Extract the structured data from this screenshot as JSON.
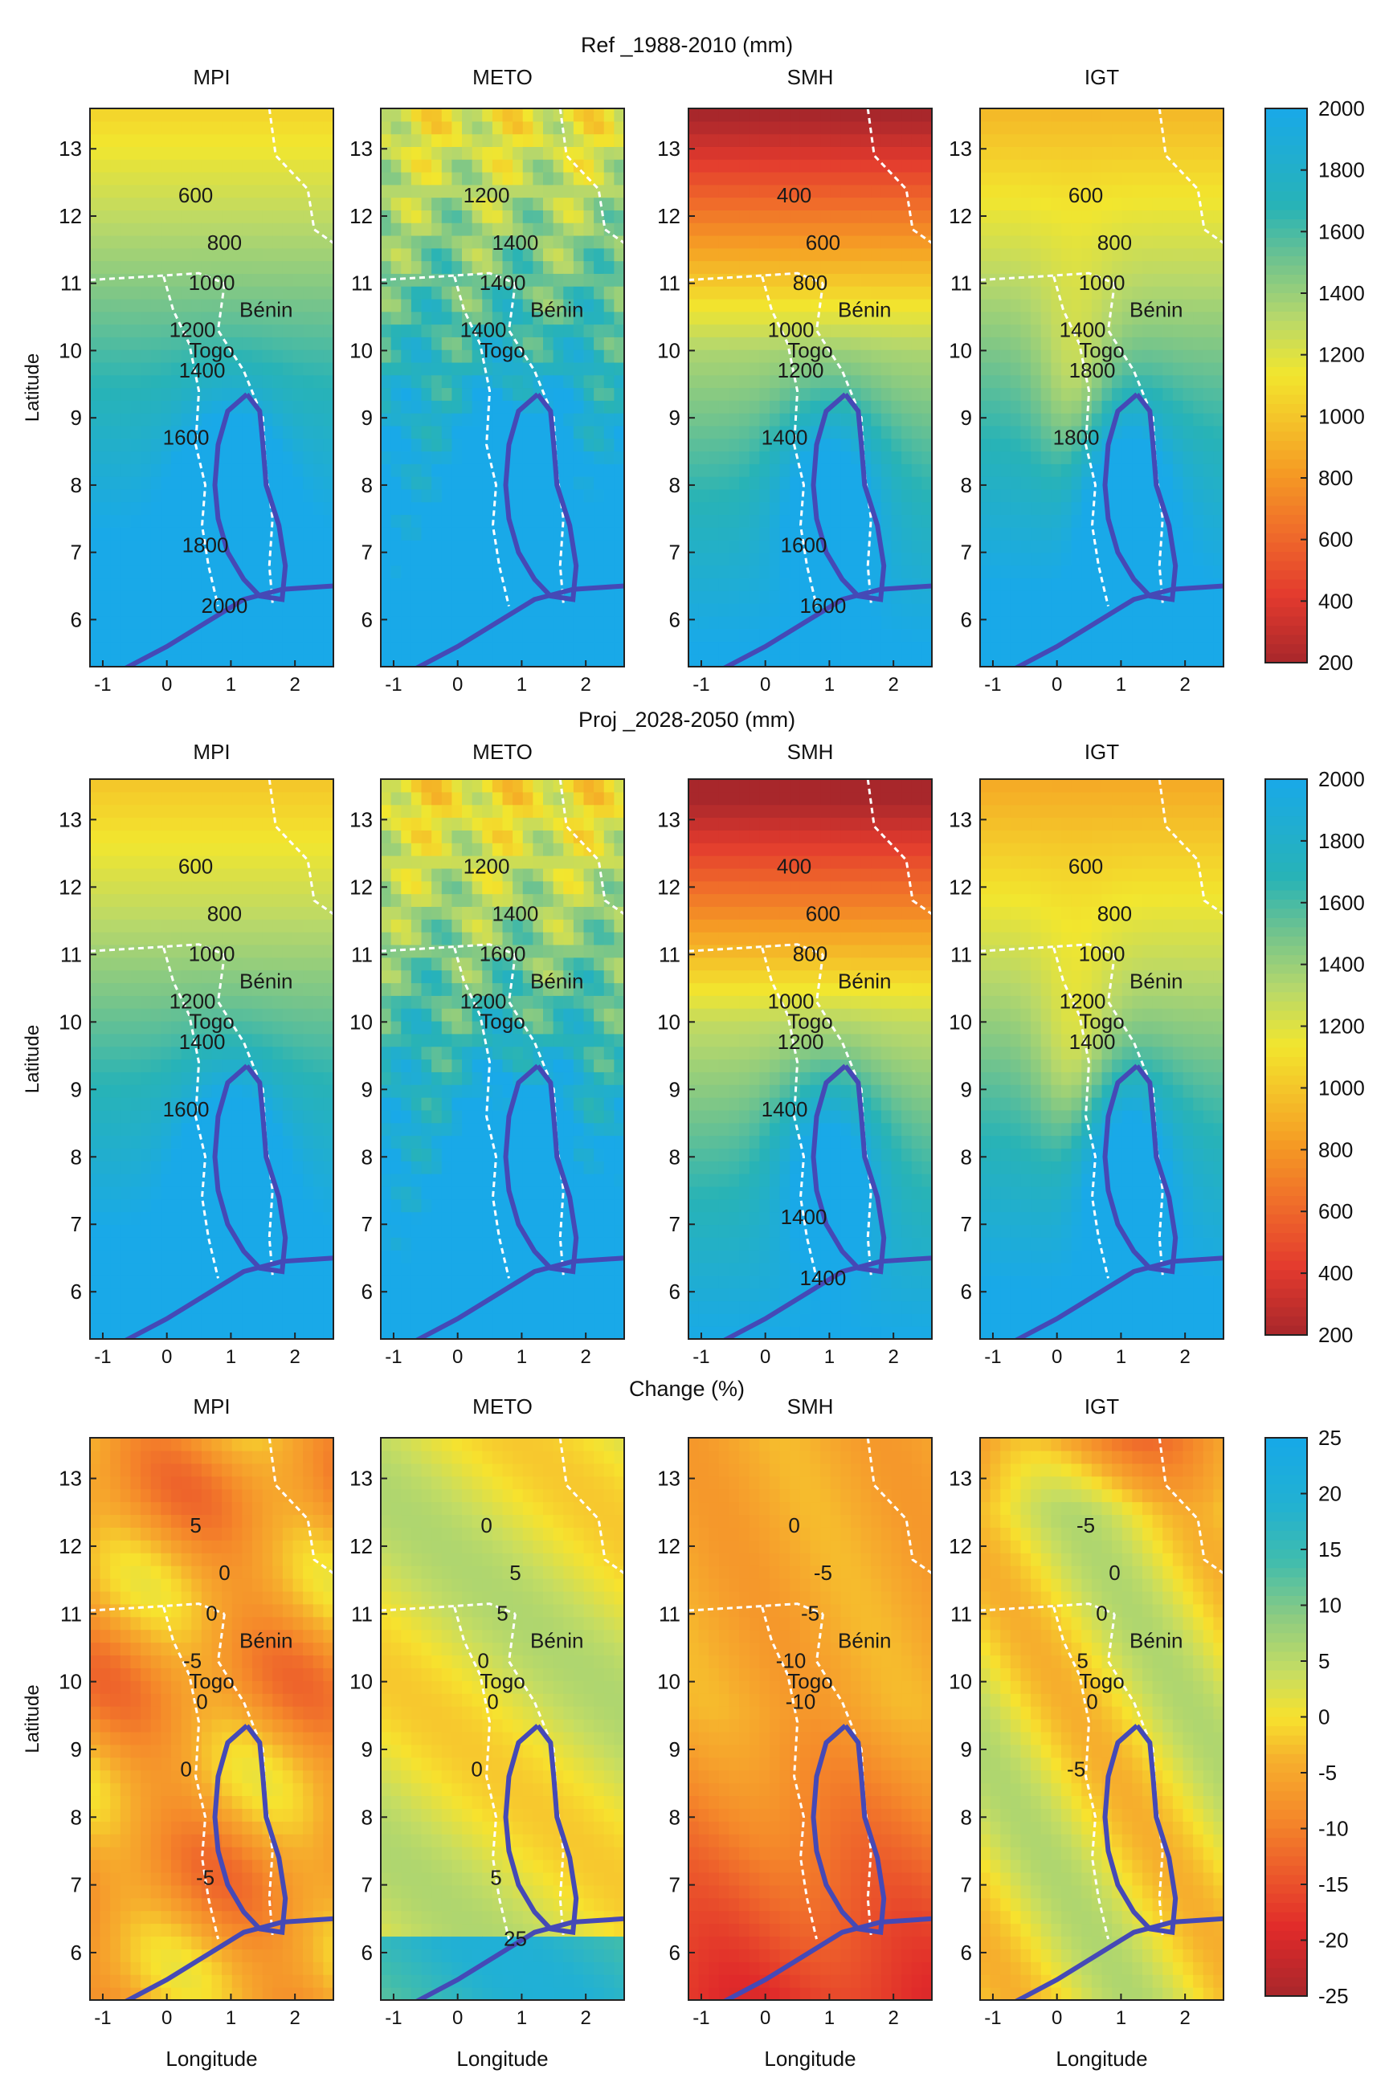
{
  "figure": {
    "row_titles": [
      "Ref _1988-2010 (mm)",
      "Proj _2028-2050 (mm)",
      "Change (%)"
    ],
    "panel_titles": [
      "MPI",
      "METO",
      "SMH",
      "IGT"
    ],
    "ylabel": "Latitude",
    "xlabel": "Longitude",
    "x_ticks": [
      "-1",
      "0",
      "1",
      "2"
    ],
    "y_ticks": [
      "13",
      "12",
      "11",
      "10",
      "9",
      "8",
      "7",
      "6"
    ],
    "country_labels": {
      "togo": "Togo",
      "benin": "Bénin"
    }
  },
  "chart_data": [
    {
      "type": "heatmap",
      "title": "Ref _1988-2010 (mm)",
      "xlabel": "Longitude",
      "ylabel": "Latitude",
      "xlim": [
        -1.2,
        2.6
      ],
      "ylim": [
        5.3,
        13.6
      ],
      "colorbar": {
        "ticks": [
          "2000",
          "1800",
          "1600",
          "1400",
          "1200",
          "1000",
          "800",
          "600",
          "400",
          "200"
        ],
        "range": [
          200,
          2000
        ]
      },
      "panels": [
        {
          "name": "MPI",
          "labels": [
            "600",
            "800",
            "1000",
            "1200",
            "1400",
            "1600",
            "1800",
            "2000"
          ]
        },
        {
          "name": "METO",
          "labels": [
            "1200",
            "1400",
            "1400",
            "1400"
          ]
        },
        {
          "name": "SMH",
          "labels": [
            "400",
            "600",
            "800",
            "1000",
            "1200",
            "1400",
            "1600",
            "1600"
          ]
        },
        {
          "name": "IGT",
          "labels": [
            "600",
            "800",
            "1000",
            "1400",
            "1800",
            "1800"
          ]
        }
      ]
    },
    {
      "type": "heatmap",
      "title": "Proj _2028-2050 (mm)",
      "xlabel": "Longitude",
      "ylabel": "Latitude",
      "xlim": [
        -1.2,
        2.6
      ],
      "ylim": [
        5.3,
        13.6
      ],
      "colorbar": {
        "ticks": [
          "2000",
          "1800",
          "1600",
          "1400",
          "1200",
          "1000",
          "800",
          "600",
          "400",
          "200"
        ],
        "range": [
          200,
          2000
        ]
      },
      "panels": [
        {
          "name": "MPI",
          "labels": [
            "600",
            "800",
            "1000",
            "1200",
            "1400",
            "1600"
          ]
        },
        {
          "name": "METO",
          "labels": [
            "1200",
            "1400",
            "1600",
            "1200"
          ]
        },
        {
          "name": "SMH",
          "labels": [
            "400",
            "600",
            "800",
            "1000",
            "1200",
            "1400",
            "1400",
            "1400"
          ]
        },
        {
          "name": "IGT",
          "labels": [
            "600",
            "800",
            "1000",
            "1200",
            "1400"
          ]
        }
      ]
    },
    {
      "type": "heatmap",
      "title": "Change (%)",
      "xlabel": "Longitude",
      "ylabel": "Latitude",
      "xlim": [
        -1.2,
        2.6
      ],
      "ylim": [
        5.3,
        13.6
      ],
      "colorbar": {
        "ticks": [
          "25",
          "20",
          "15",
          "10",
          "5",
          "0",
          "-5",
          "-10",
          "-15",
          "-20",
          "-25"
        ],
        "range": [
          -25,
          25
        ]
      },
      "panels": [
        {
          "name": "MPI",
          "labels": [
            "5",
            "0",
            "0",
            "-5",
            "0",
            "0",
            "-5"
          ]
        },
        {
          "name": "METO",
          "labels": [
            "0",
            "5",
            "5",
            "0",
            "0",
            "0",
            "5",
            "25"
          ]
        },
        {
          "name": "SMH",
          "labels": [
            "0",
            "-5",
            "-5",
            "-10",
            "-10"
          ]
        },
        {
          "name": "IGT",
          "labels": [
            "-5",
            "0",
            "0",
            "5",
            "0",
            "-5"
          ]
        }
      ]
    }
  ]
}
